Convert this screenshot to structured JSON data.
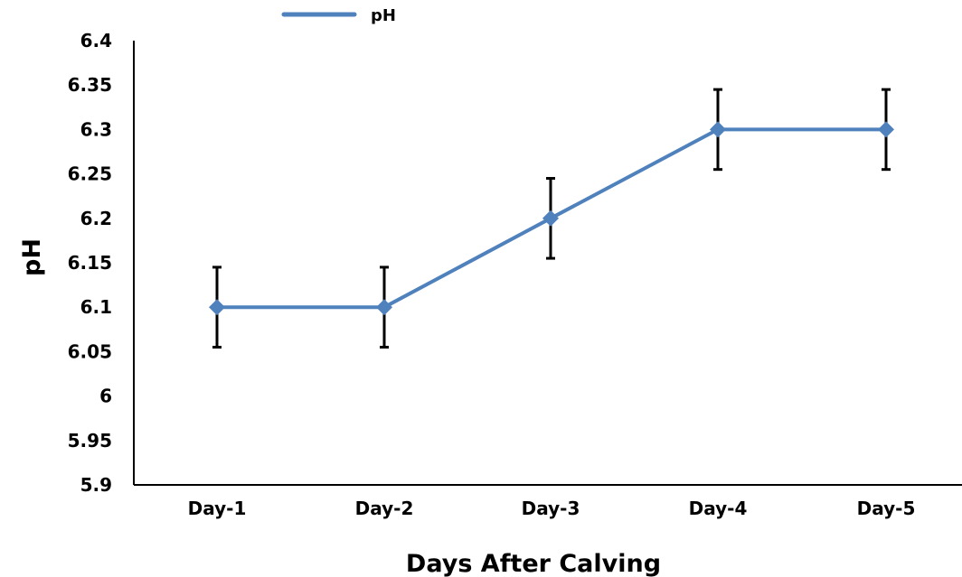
{
  "chart_data": {
    "type": "line",
    "categories": [
      "Day-1",
      "Day-2",
      "Day-3",
      "Day-4",
      "Day-5"
    ],
    "series": [
      {
        "name": "pH",
        "values": [
          6.1,
          6.1,
          6.2,
          6.3,
          6.3
        ],
        "error": [
          0.045,
          0.045,
          0.045,
          0.045,
          0.045
        ],
        "color": "#4F81BD"
      }
    ],
    "xlabel": "Days After Calving",
    "ylabel": "pH",
    "ylim": [
      5.9,
      6.4
    ],
    "yticks": [
      "5.9",
      "5.95",
      "6",
      "6.05",
      "6.1",
      "6.15",
      "6.2",
      "6.25",
      "6.3",
      "6.35",
      "6.4"
    ],
    "grid": false,
    "legend_position": "top-left",
    "error_bar_color": "#000000"
  }
}
